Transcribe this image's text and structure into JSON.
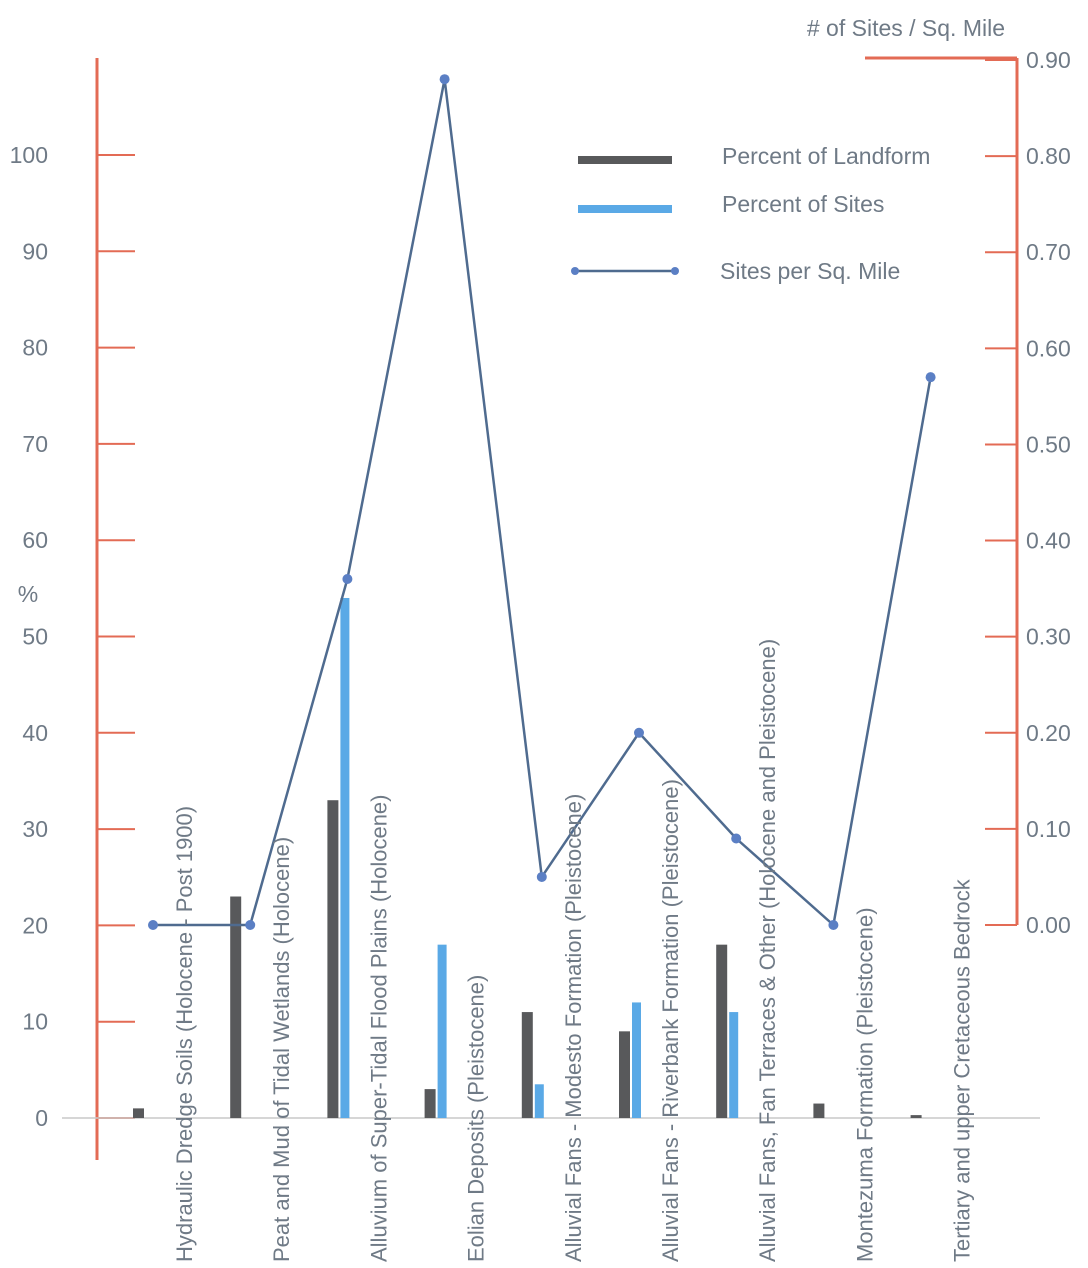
{
  "chart_data": {
    "type": "bar",
    "categories": [
      "Hydraulic Dredge Soils (Holocene - Post 1900)",
      "Peat and Mud of Tidal Wetlands (Holocene)",
      "Alluvium of Super-Tidal Flood Plains (Holocene)",
      "Eolian Deposits (Pleistocene)",
      "Alluvial Fans - Modesto Formation (Pleistocene)",
      "Alluvial Fans - Riverbank Formation (Pleistocene)",
      "Alluvial Fans, Fan Terraces & Other (Holocene and Pleistocene)",
      "Montezuma Formation (Pleistocene)",
      "Tertiary and upper Cretaceous Bedrock"
    ],
    "series": [
      {
        "name": "Percent of Landform",
        "axis": "left",
        "kind": "bar",
        "color": "#58595b",
        "values": [
          1,
          23,
          33,
          3,
          11,
          9,
          18,
          1.5,
          0.3
        ]
      },
      {
        "name": "Percent of Sites",
        "axis": "left",
        "kind": "bar",
        "color": "#5aa9e6",
        "values": [
          0,
          0,
          54,
          18,
          3.5,
          12,
          11,
          0,
          0
        ]
      },
      {
        "name": "Sites per Sq. Mile",
        "axis": "right",
        "kind": "line",
        "color": "#4f6b8f",
        "values": [
          0,
          0,
          0.36,
          0.88,
          0.05,
          0.2,
          0.09,
          0,
          0.57
        ]
      }
    ],
    "ylabel": "%",
    "ylim": [
      0,
      100
    ],
    "yticks": [
      "0",
      "10",
      "20",
      "30",
      "40",
      "50",
      "60",
      "70",
      "80",
      "90",
      "100"
    ],
    "y2label": "# of Sites / Sq. Mile",
    "y2lim": [
      0,
      0.9
    ],
    "y2ticks": [
      "0.00",
      "0.10",
      "0.20",
      "0.30",
      "0.40",
      "0.50",
      "0.60",
      "0.70",
      "0.80",
      "0.90"
    ],
    "legend_position": "top-right",
    "axis_color": "#e36b55",
    "grid": false
  }
}
